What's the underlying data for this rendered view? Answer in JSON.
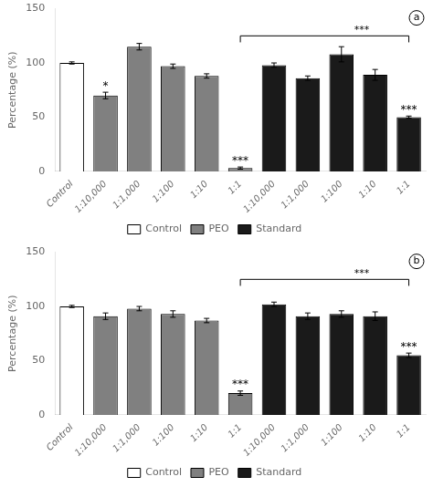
{
  "chart_data": [
    {
      "type": "bar",
      "panel_label": "a",
      "categories": [
        "Control",
        "1:10,000",
        "1:1,000",
        "1:100",
        "1:10",
        "1:1",
        "1:10,000",
        "1:1,000",
        "1:100",
        "1:10",
        "1:1"
      ],
      "series": [
        {
          "name": "Control",
          "color": "#ffffff",
          "values": [
            100,
            null,
            null,
            null,
            null,
            null,
            null,
            null,
            null,
            null,
            null
          ],
          "errors": [
            1,
            null,
            null,
            null,
            null,
            null,
            null,
            null,
            null,
            null,
            null
          ]
        },
        {
          "name": "PEO",
          "color": "#808080",
          "values": [
            null,
            70,
            115,
            97,
            88,
            3,
            null,
            null,
            null,
            null,
            null
          ],
          "errors": [
            null,
            3,
            3,
            2,
            2,
            1,
            null,
            null,
            null,
            null,
            null
          ]
        },
        {
          "name": "Standard",
          "color": "#1a1a1a",
          "values": [
            null,
            null,
            null,
            null,
            null,
            null,
            98,
            86,
            108,
            89,
            50
          ],
          "errors": [
            null,
            null,
            null,
            null,
            null,
            null,
            2,
            2,
            7,
            5,
            1
          ]
        }
      ],
      "annotations": [
        {
          "x": 1,
          "y": 75,
          "text": "*"
        },
        {
          "x": 5,
          "y": 6,
          "text": "***"
        },
        {
          "x": 10,
          "y": 53,
          "text": "***"
        }
      ],
      "bracket": {
        "x1": 5,
        "x2": 10,
        "y_top": 125,
        "drop": 6,
        "text": "***"
      },
      "ylabel": "Percentage (%)",
      "ylim": [
        0,
        150
      ],
      "yticks": [
        0,
        50,
        100,
        150
      ],
      "grid": false,
      "legend": "bottom"
    },
    {
      "type": "bar",
      "panel_label": "b",
      "categories": [
        "Control",
        "1:10,000",
        "1:1,000",
        "1:100",
        "1:10",
        "1:1",
        "1:10,000",
        "1:1,000",
        "1:100",
        "1:10",
        "1:1"
      ],
      "series": [
        {
          "name": "Control",
          "color": "#ffffff",
          "values": [
            100,
            null,
            null,
            null,
            null,
            null,
            null,
            null,
            null,
            null,
            null
          ],
          "errors": [
            1,
            null,
            null,
            null,
            null,
            null,
            null,
            null,
            null,
            null,
            null
          ]
        },
        {
          "name": "PEO",
          "color": "#808080",
          "values": [
            null,
            91,
            98,
            93,
            87,
            20,
            null,
            null,
            null,
            null,
            null
          ],
          "errors": [
            null,
            3,
            2,
            3,
            2,
            2,
            null,
            null,
            null,
            null,
            null
          ]
        },
        {
          "name": "Standard",
          "color": "#1a1a1a",
          "values": [
            null,
            null,
            null,
            null,
            null,
            null,
            102,
            91,
            93,
            91,
            55
          ],
          "errors": [
            null,
            null,
            null,
            null,
            null,
            null,
            2,
            3,
            3,
            4,
            2
          ]
        }
      ],
      "annotations": [
        {
          "x": 5,
          "y": 24,
          "text": "***"
        },
        {
          "x": 10,
          "y": 59,
          "text": "***"
        }
      ],
      "bracket": {
        "x1": 5,
        "x2": 10,
        "y_top": 125,
        "drop": 6,
        "text": "***"
      },
      "ylabel": "Percentage (%)",
      "ylim": [
        0,
        150
      ],
      "yticks": [
        0,
        50,
        100,
        150
      ],
      "grid": false,
      "legend": "bottom"
    }
  ]
}
